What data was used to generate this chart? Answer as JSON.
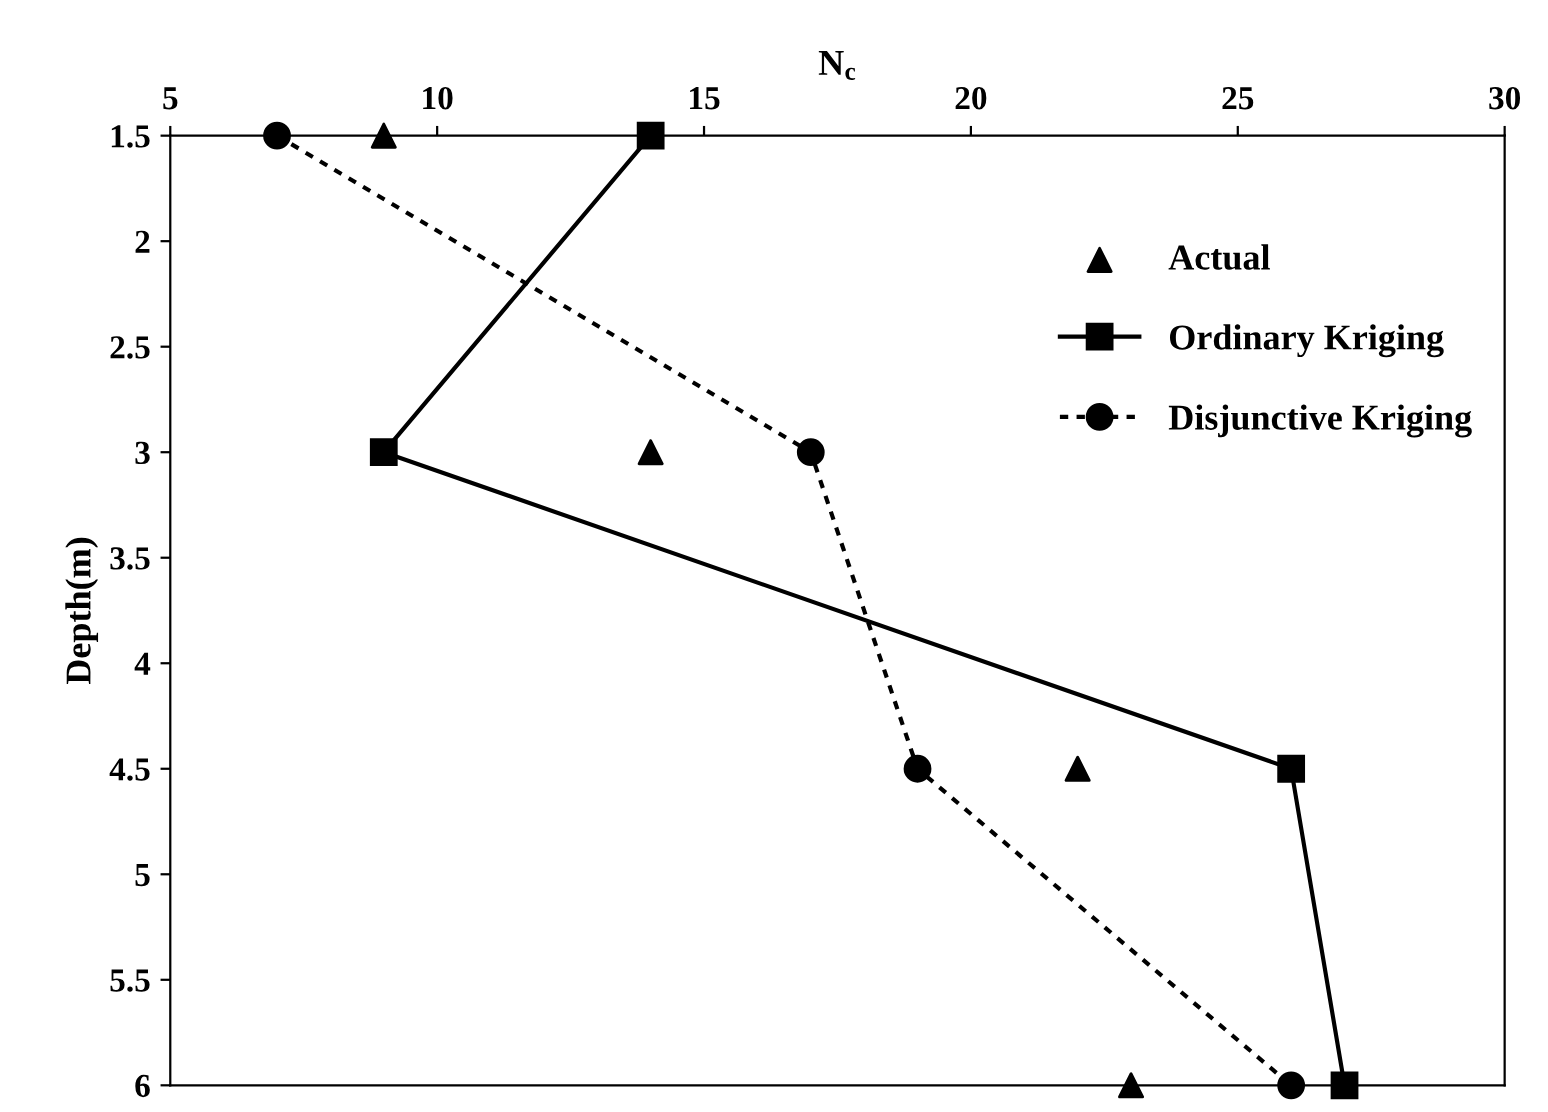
{
  "chart_data": {
    "type": "line",
    "xlabel": "N$_{c}$",
    "ylabel": "Depth(m)",
    "xlim": [
      5,
      30
    ],
    "xticks": [
      5,
      10,
      15,
      20,
      25,
      30
    ],
    "ylim": [
      6,
      1.5
    ],
    "yticks": [
      1.5,
      2,
      2.5,
      3,
      3.5,
      4,
      4.5,
      5,
      5.5,
      6
    ],
    "grid": false,
    "legend": "top right",
    "series": [
      {
        "name": "Actual",
        "type": "scatter",
        "color": "#000000",
        "marker": "triangle",
        "x": [
          9,
          14,
          22,
          23
        ],
        "values": [
          1.5,
          3,
          4.5,
          6
        ]
      },
      {
        "name": "Ordinary Kriging",
        "color": "#000000",
        "marker": "square",
        "line_style": "solid",
        "x": [
          14,
          9,
          26,
          27
        ],
        "values": [
          1.5,
          3,
          4.5,
          6
        ]
      },
      {
        "name": "Disjunctive Kriging",
        "color": "#000000",
        "marker": "circle",
        "line_style": "dotted",
        "x": [
          7,
          17,
          19,
          26
        ],
        "values": [
          1.5,
          3,
          4.5,
          6
        ]
      }
    ]
  }
}
